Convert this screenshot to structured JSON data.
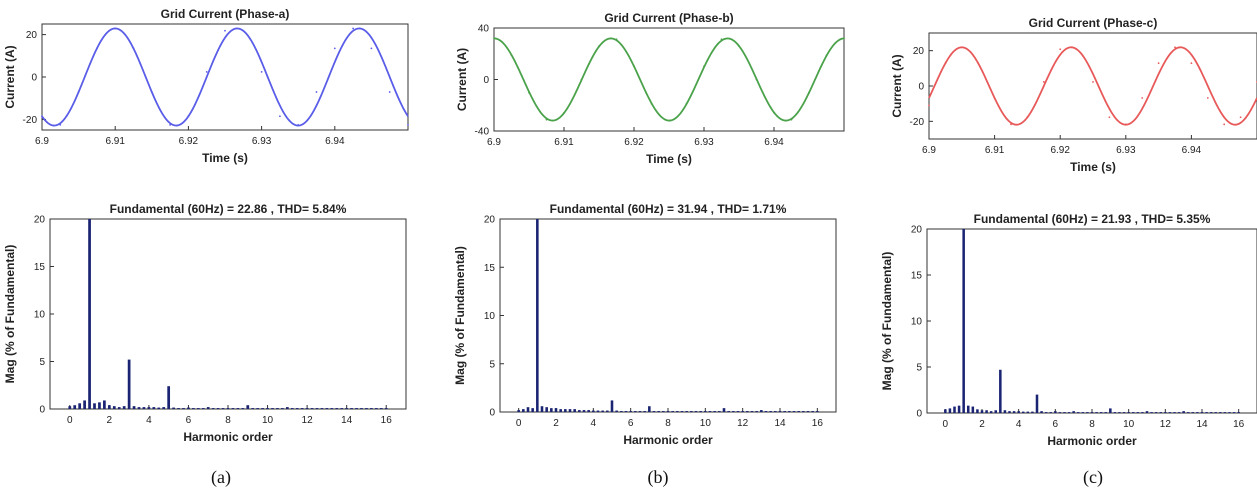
{
  "captions": [
    "(a)",
    "(b)",
    "(c)"
  ],
  "colors": {
    "axis": "#333333",
    "bar": "#1a2472"
  },
  "panels": [
    {
      "caption": "(a)",
      "wave": {
        "title": "Grid Current (Phase-a)",
        "xlabel": "Time (s)",
        "ylabel": "Current (A)",
        "color": "#5a5de8"
      },
      "harm": {
        "title": "Fundamental (60Hz) = 22.86 , THD= 5.84%",
        "xlabel": "Harmonic order",
        "ylabel": "Mag (% of Fundamental)"
      }
    },
    {
      "caption": "(b)",
      "wave": {
        "title": "Grid Current (Phase-b)",
        "xlabel": "Time (s)",
        "ylabel": "Current (A)",
        "color": "#4aa24a"
      },
      "harm": {
        "title": "Fundamental (60Hz) = 31.94 , THD= 1.71%",
        "xlabel": "Harmonic order",
        "ylabel": "Mag (% of Fundamental)"
      }
    },
    {
      "caption": "(c)",
      "wave": {
        "title": "Grid Current (Phase-c)",
        "xlabel": "Time (s)",
        "ylabel": "Current (A)",
        "color": "#e85a5a"
      },
      "harm": {
        "title": "Fundamental (60Hz) = 21.93 , THD= 5.35%",
        "xlabel": "Harmonic order",
        "ylabel": "Mag (% of Fundamental)"
      }
    }
  ],
  "chart_data": [
    {
      "type": "line",
      "title": "Grid Current (Phase-a)",
      "xlabel": "Time (s)",
      "ylabel": "Current (A)",
      "xlim": [
        6.9,
        6.95
      ],
      "ylim": [
        -25,
        25
      ],
      "xticks": [
        6.9,
        6.91,
        6.92,
        6.93,
        6.94
      ],
      "xtick_labels": [
        "6.9",
        "6.91",
        "6.92",
        "6.93",
        "6.94"
      ],
      "yticks": [
        -20,
        0,
        20
      ],
      "ytick_labels": [
        "-20",
        "0",
        "20"
      ],
      "series": [
        {
          "amplitude": 22.9,
          "frequency_hz": 60,
          "peak_time": 6.91,
          "x": [
            6.9,
            6.9025,
            6.905,
            6.9075,
            6.91,
            6.9125,
            6.915,
            6.9175,
            6.92,
            6.9225,
            6.925,
            6.9275,
            6.93,
            6.9325,
            6.935,
            6.9375,
            6.94,
            6.9425,
            6.945,
            6.9475,
            6.95
          ],
          "y": [
            -18.5,
            -22.6,
            -7.1,
            13.5,
            22.9,
            13.5,
            -7.1,
            -22.6,
            -18.5,
            2.4,
            21.8,
            21.8,
            2.4,
            -18.5,
            -22.6,
            -7.1,
            13.5,
            22.9,
            13.5,
            -7.1,
            -22.6
          ]
        }
      ],
      "grid": false
    },
    {
      "type": "bar",
      "title": "Fundamental (60Hz) = 22.86 , THD= 5.84%",
      "xlabel": "Harmonic order",
      "ylabel": "Mag (% of Fundamental)",
      "xlim": [
        -1,
        17
      ],
      "ylim": [
        0,
        20
      ],
      "xticks": [
        0,
        2,
        4,
        6,
        8,
        10,
        12,
        14,
        16
      ],
      "yticks": [
        0,
        5,
        10,
        15,
        20
      ],
      "x": [
        0,
        0.25,
        0.5,
        0.75,
        1,
        1.25,
        1.5,
        1.75,
        2,
        2.25,
        2.5,
        2.75,
        3,
        3.25,
        3.5,
        3.75,
        4,
        4.25,
        4.5,
        4.75,
        5,
        5.25,
        5.5,
        5.75,
        6,
        6.25,
        6.5,
        6.75,
        7,
        7.25,
        7.5,
        7.75,
        8,
        8.25,
        8.5,
        8.75,
        9,
        9.25,
        9.5,
        9.75,
        10,
        10.25,
        10.5,
        10.75,
        11,
        11.25,
        11.5,
        11.75,
        12,
        12.25,
        12.5,
        12.75,
        13,
        13.25,
        13.5,
        13.75,
        14,
        14.25,
        14.5,
        14.75,
        15,
        15.25,
        15.5,
        15.75,
        16
      ],
      "values": [
        0.3,
        0.4,
        0.6,
        0.9,
        20,
        0.6,
        0.7,
        0.9,
        0.4,
        0.3,
        0.2,
        0.3,
        5.2,
        0.3,
        0.2,
        0.2,
        0.2,
        0.2,
        0.15,
        0.2,
        2.4,
        0.15,
        0.1,
        0.1,
        0.15,
        0.1,
        0.1,
        0.1,
        0.2,
        0.1,
        0.1,
        0.1,
        0.1,
        0.1,
        0.1,
        0.1,
        0.4,
        0.1,
        0.1,
        0.1,
        0.1,
        0.1,
        0.1,
        0.1,
        0.2,
        0.1,
        0.1,
        0.1,
        0.1,
        0.1,
        0.1,
        0.1,
        0.1,
        0.1,
        0.1,
        0.1,
        0.1,
        0.1,
        0.1,
        0.1,
        0.1,
        0.1,
        0.1,
        0.1,
        0.1
      ],
      "grid": false
    },
    {
      "type": "line",
      "title": "Grid Current (Phase-b)",
      "xlabel": "Time (s)",
      "ylabel": "Current (A)",
      "xlim": [
        6.9,
        6.95
      ],
      "ylim": [
        -40,
        40
      ],
      "xticks": [
        6.9,
        6.91,
        6.92,
        6.93,
        6.94
      ],
      "xtick_labels": [
        "6.9",
        "6.91",
        "6.92",
        "6.93",
        "6.94"
      ],
      "yticks": [
        -40,
        0,
        40
      ],
      "ytick_labels": [
        "-40",
        "0",
        "40"
      ],
      "series": [
        {
          "amplitude": 31.9,
          "frequency_hz": 60,
          "peak_time": 6.9167,
          "x": [
            6.9,
            6.9025,
            6.905,
            6.9075,
            6.91,
            6.9125,
            6.915,
            6.9175,
            6.92,
            6.9225,
            6.925,
            6.9275,
            6.93,
            6.9325,
            6.935,
            6.9375,
            6.94,
            6.9425,
            6.945,
            6.9475,
            6.95
          ],
          "y": [
            31.9,
            18.8,
            -10.3,
            -31.2,
            -25.8,
            0,
            25.8,
            31.2,
            10.3,
            -18.8,
            -31.9,
            -18.8,
            10.3,
            31.2,
            25.8,
            0,
            -25.8,
            -31.2,
            -10.3,
            18.8,
            31.9
          ]
        }
      ],
      "grid": false
    },
    {
      "type": "bar",
      "title": "Fundamental (60Hz) = 31.94 , THD= 1.71%",
      "xlabel": "Harmonic order",
      "ylabel": "Mag (% of Fundamental)",
      "xlim": [
        -1,
        17
      ],
      "ylim": [
        0,
        20
      ],
      "xticks": [
        0,
        2,
        4,
        6,
        8,
        10,
        12,
        14,
        16
      ],
      "yticks": [
        0,
        5,
        10,
        15,
        20
      ],
      "x": [
        0,
        0.25,
        0.5,
        0.75,
        1,
        1.25,
        1.5,
        1.75,
        2,
        2.25,
        2.5,
        2.75,
        3,
        3.25,
        3.5,
        3.75,
        4,
        4.25,
        4.5,
        4.75,
        5,
        5.25,
        5.5,
        5.75,
        6,
        6.25,
        6.5,
        6.75,
        7,
        7.25,
        7.5,
        7.75,
        8,
        8.25,
        8.5,
        8.75,
        9,
        9.25,
        9.5,
        9.75,
        10,
        10.25,
        10.5,
        10.75,
        11,
        11.25,
        11.5,
        11.75,
        12,
        12.25,
        12.5,
        12.75,
        13,
        13.25,
        13.5,
        13.75,
        14,
        14.25,
        14.5,
        14.75,
        15,
        15.25,
        15.5,
        15.75,
        16
      ],
      "values": [
        0.2,
        0.3,
        0.5,
        0.4,
        20,
        0.6,
        0.5,
        0.4,
        0.4,
        0.3,
        0.3,
        0.3,
        0.3,
        0.2,
        0.2,
        0.2,
        0.15,
        0.15,
        0.15,
        0.15,
        1.2,
        0.15,
        0.1,
        0.1,
        0.1,
        0.1,
        0.1,
        0.1,
        0.6,
        0.1,
        0.1,
        0.1,
        0.1,
        0.1,
        0.1,
        0.1,
        0.1,
        0.1,
        0.1,
        0.1,
        0.1,
        0.1,
        0.1,
        0.1,
        0.4,
        0.1,
        0.1,
        0.1,
        0.1,
        0.1,
        0.1,
        0.1,
        0.2,
        0.1,
        0.1,
        0.1,
        0.1,
        0.1,
        0.1,
        0.1,
        0.1,
        0.1,
        0.1,
        0.1,
        0.1
      ],
      "grid": false
    },
    {
      "type": "line",
      "title": "Grid Current (Phase-c)",
      "xlabel": "Time (s)",
      "ylabel": "Current (A)",
      "xlim": [
        6.9,
        6.95
      ],
      "ylim": [
        -30,
        30
      ],
      "xticks": [
        6.9,
        6.91,
        6.92,
        6.93,
        6.94
      ],
      "xtick_labels": [
        "6.9",
        "6.91",
        "6.92",
        "6.93",
        "6.94"
      ],
      "yticks": [
        -20,
        0,
        20
      ],
      "ytick_labels": [
        "-20",
        "0",
        "20"
      ],
      "series": [
        {
          "amplitude": 21.9,
          "frequency_hz": 60,
          "peak_time": 6.905,
          "x": [
            6.9,
            6.9025,
            6.905,
            6.9075,
            6.91,
            6.9125,
            6.915,
            6.9175,
            6.92,
            6.9225,
            6.925,
            6.9275,
            6.93,
            6.9325,
            6.935,
            6.9375,
            6.94,
            6.9425,
            6.945,
            6.9475,
            6.95
          ],
          "y": [
            -11,
            12.9,
            21.9,
            12.9,
            -6.8,
            -21.7,
            -17.7,
            2.3,
            20.8,
            20.8,
            2.3,
            -17.7,
            -21.7,
            -6.8,
            12.9,
            21.9,
            12.9,
            -6.8,
            -21.7,
            -17.7,
            2.3
          ]
        }
      ],
      "grid": false
    },
    {
      "type": "bar",
      "title": "Fundamental (60Hz) = 21.93 , THD= 5.35%",
      "xlabel": "Harmonic order",
      "ylabel": "Mag (% of Fundamental)",
      "xlim": [
        -1,
        17
      ],
      "ylim": [
        0,
        20
      ],
      "xticks": [
        0,
        2,
        4,
        6,
        8,
        10,
        12,
        14,
        16
      ],
      "yticks": [
        0,
        5,
        10,
        15,
        20
      ],
      "x": [
        0,
        0.25,
        0.5,
        0.75,
        1,
        1.25,
        1.5,
        1.75,
        2,
        2.25,
        2.5,
        2.75,
        3,
        3.25,
        3.5,
        3.75,
        4,
        4.25,
        4.5,
        4.75,
        5,
        5.25,
        5.5,
        5.75,
        6,
        6.25,
        6.5,
        6.75,
        7,
        7.25,
        7.5,
        7.75,
        8,
        8.25,
        8.5,
        8.75,
        9,
        9.25,
        9.5,
        9.75,
        10,
        10.25,
        10.5,
        10.75,
        11,
        11.25,
        11.5,
        11.75,
        12,
        12.25,
        12.5,
        12.75,
        13,
        13.25,
        13.5,
        13.75,
        14,
        14.25,
        14.5,
        14.75,
        15,
        15.25,
        15.5,
        15.75,
        16
      ],
      "values": [
        0.4,
        0.5,
        0.7,
        0.8,
        20,
        0.8,
        0.7,
        0.4,
        0.3,
        0.3,
        0.2,
        0.3,
        4.7,
        0.3,
        0.2,
        0.2,
        0.2,
        0.15,
        0.15,
        0.15,
        2.0,
        0.2,
        0.1,
        0.1,
        0.2,
        0.1,
        0.1,
        0.1,
        0.2,
        0.1,
        0.1,
        0.1,
        0.1,
        0.1,
        0.1,
        0.1,
        0.5,
        0.1,
        0.1,
        0.1,
        0.1,
        0.1,
        0.1,
        0.1,
        0.2,
        0.1,
        0.1,
        0.1,
        0.1,
        0.1,
        0.1,
        0.1,
        0.2,
        0.1,
        0.1,
        0.1,
        0.1,
        0.1,
        0.1,
        0.1,
        0.1,
        0.1,
        0.1,
        0.1,
        0.1
      ],
      "grid": false
    }
  ]
}
